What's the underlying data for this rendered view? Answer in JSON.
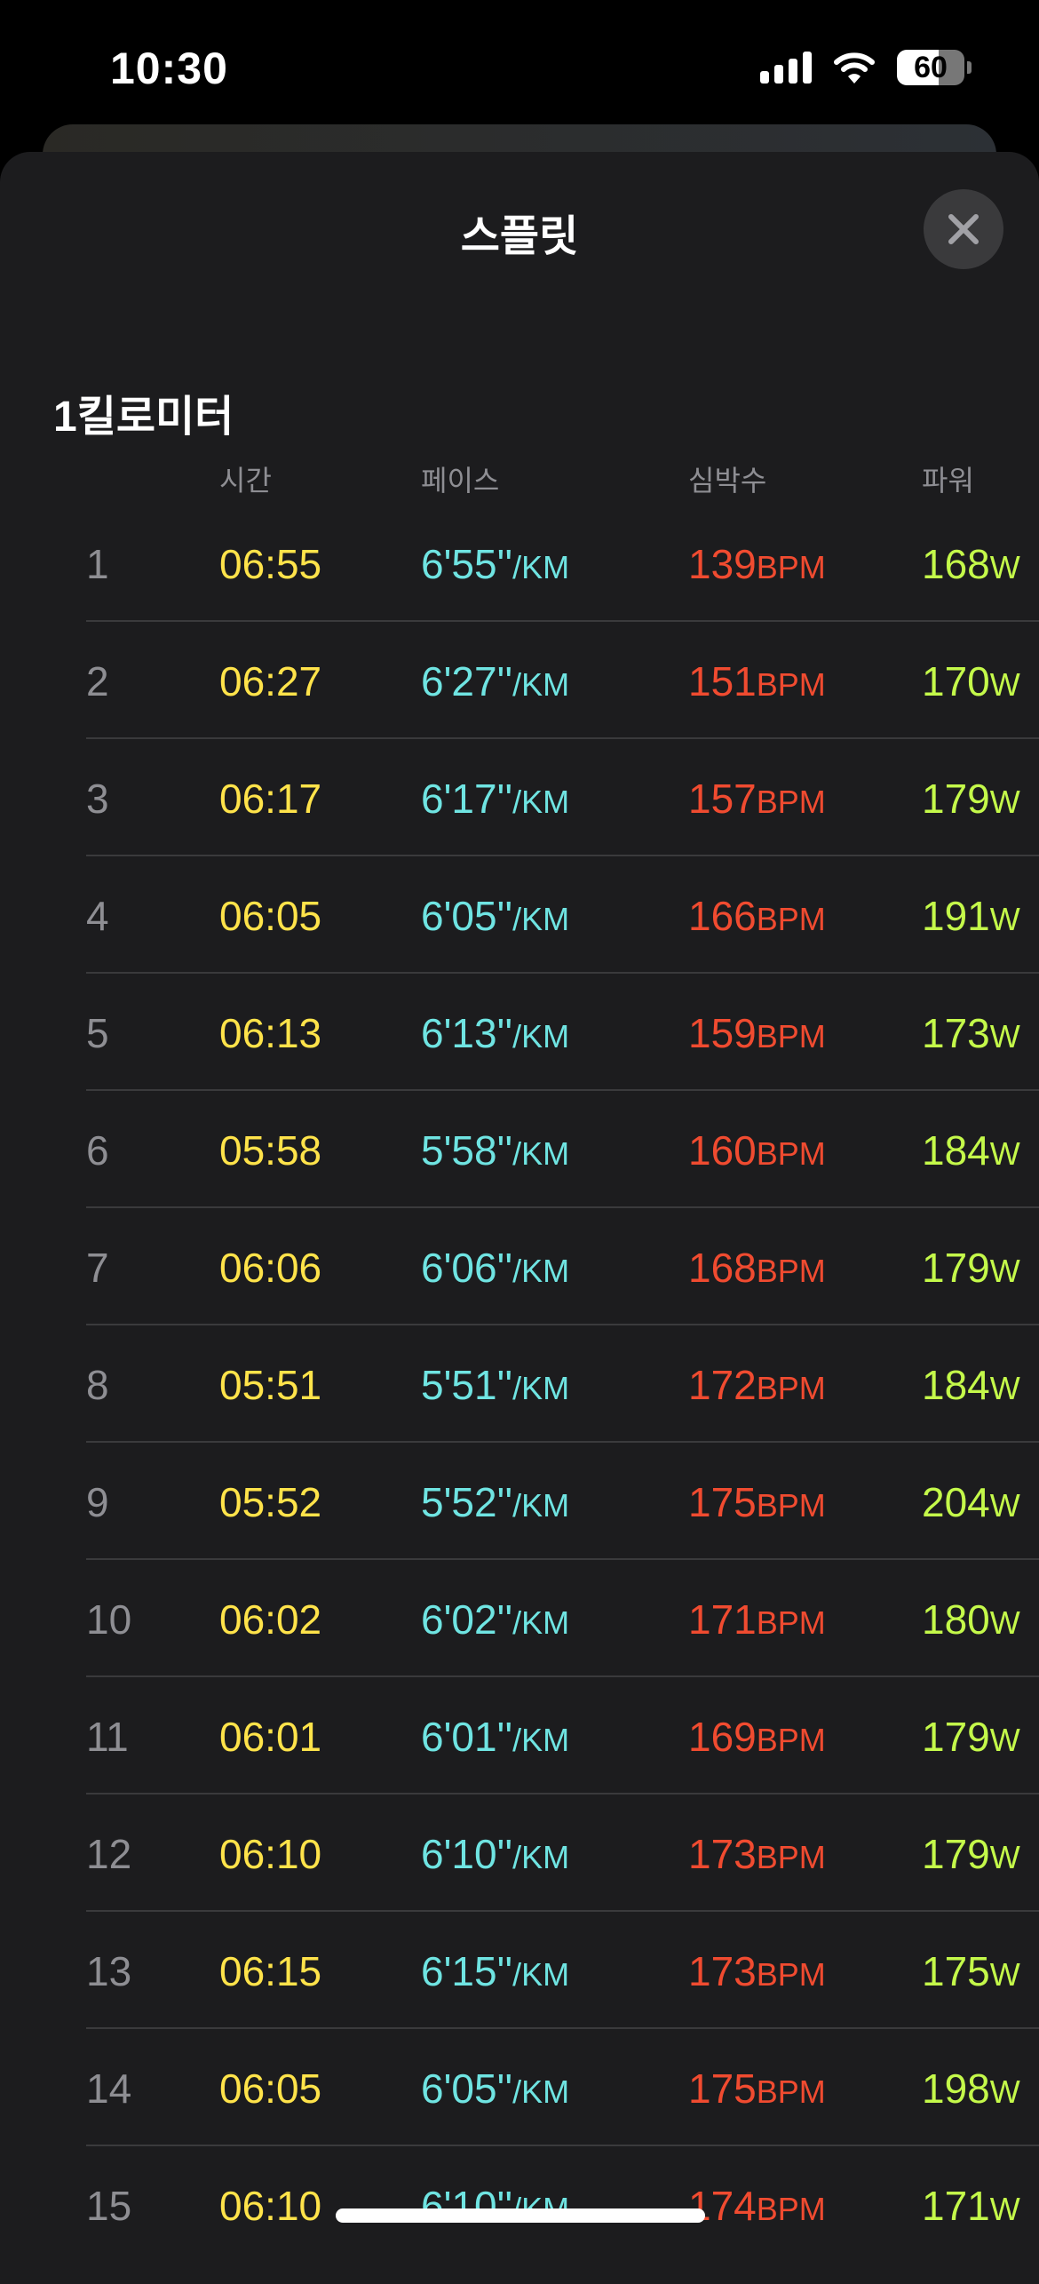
{
  "status_bar": {
    "time": "10:30",
    "battery": "60"
  },
  "sheet": {
    "title": "스플릿",
    "close_icon": "close-icon"
  },
  "section": {
    "title": "1킬로미터"
  },
  "columns": [
    "시간",
    "페이스",
    "심박수",
    "파워"
  ],
  "units": {
    "pace": "/KM",
    "hr": "BPM",
    "power": "W"
  },
  "colors": {
    "time": "#ffe34a",
    "pace": "#6fe4e2",
    "hr": "#f04b30",
    "power": "#c4f94a",
    "background": "#1c1c1e"
  },
  "splits": [
    {
      "index": "1",
      "time": "06:55",
      "pace": "6'55''",
      "hr": "139",
      "power": "168"
    },
    {
      "index": "2",
      "time": "06:27",
      "pace": "6'27''",
      "hr": "151",
      "power": "170"
    },
    {
      "index": "3",
      "time": "06:17",
      "pace": "6'17''",
      "hr": "157",
      "power": "179"
    },
    {
      "index": "4",
      "time": "06:05",
      "pace": "6'05''",
      "hr": "166",
      "power": "191"
    },
    {
      "index": "5",
      "time": "06:13",
      "pace": "6'13''",
      "hr": "159",
      "power": "173"
    },
    {
      "index": "6",
      "time": "05:58",
      "pace": "5'58''",
      "hr": "160",
      "power": "184"
    },
    {
      "index": "7",
      "time": "06:06",
      "pace": "6'06''",
      "hr": "168",
      "power": "179"
    },
    {
      "index": "8",
      "time": "05:51",
      "pace": "5'51''",
      "hr": "172",
      "power": "184"
    },
    {
      "index": "9",
      "time": "05:52",
      "pace": "5'52''",
      "hr": "175",
      "power": "204"
    },
    {
      "index": "10",
      "time": "06:02",
      "pace": "6'02''",
      "hr": "171",
      "power": "180"
    },
    {
      "index": "11",
      "time": "06:01",
      "pace": "6'01''",
      "hr": "169",
      "power": "179"
    },
    {
      "index": "12",
      "time": "06:10",
      "pace": "6'10''",
      "hr": "173",
      "power": "179"
    },
    {
      "index": "13",
      "time": "06:15",
      "pace": "6'15''",
      "hr": "173",
      "power": "175"
    },
    {
      "index": "14",
      "time": "06:05",
      "pace": "6'05''",
      "hr": "175",
      "power": "198"
    },
    {
      "index": "15",
      "time": "06:10",
      "pace": "6'10''",
      "hr": "174",
      "power": "171"
    }
  ]
}
